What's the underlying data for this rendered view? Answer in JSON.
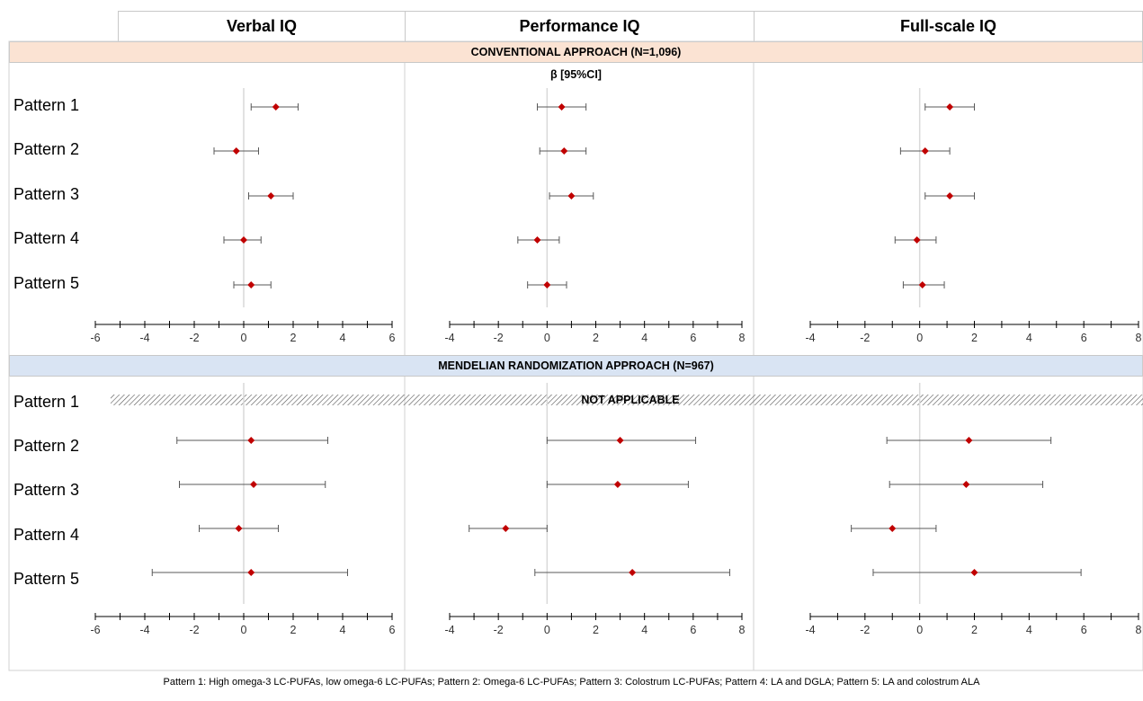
{
  "columns": [
    "Verbal IQ",
    "Performance IQ",
    "Full-scale IQ"
  ],
  "sections": {
    "conventional": {
      "title": "CONVENTIONAL APPROACH (N=1,096)",
      "subtitle": "β [95%CI]"
    },
    "mendelian": {
      "title": "MENDELIAN RANDOMIZATION APPROACH (N=967)",
      "not_applicable": "NOT APPLICABLE"
    }
  },
  "row_labels": [
    "Pattern 1",
    "Pattern 2",
    "Pattern 3",
    "Pattern 4",
    "Pattern 5"
  ],
  "caption": "Pattern 1: High omega-3 LC-PUFAs, low omega-6 LC-PUFAs; Pattern 2: Omega-6 LC-PUFAs; Pattern 3: Colostrum LC-PUFAs; Pattern 4: LA and DGLA; Pattern 5: LA and colostrum ALA",
  "colors": {
    "point": "#c00000",
    "whisker": "#595959",
    "zero_line": "#d9d9d9",
    "conventional_band": "#fbe3d3",
    "mendelian_band": "#d9e4f3"
  },
  "chart_data": [
    {
      "type": "forest",
      "section": "CONVENTIONAL APPROACH (N=1,096)",
      "panel": "Verbal IQ",
      "xlim": [
        -6,
        6
      ],
      "ticks": [
        -6,
        -4,
        -2,
        0,
        2,
        4,
        6
      ],
      "categories": [
        "Pattern 1",
        "Pattern 2",
        "Pattern 3",
        "Pattern 4",
        "Pattern 5"
      ],
      "estimates": [
        1.3,
        -0.3,
        1.1,
        0.0,
        0.3
      ],
      "lower": [
        0.3,
        -1.2,
        0.2,
        -0.8,
        -0.4
      ],
      "upper": [
        2.2,
        0.6,
        2.0,
        0.7,
        1.1
      ]
    },
    {
      "type": "forest",
      "section": "CONVENTIONAL APPROACH (N=1,096)",
      "panel": "Performance IQ",
      "xlim": [
        -4,
        8
      ],
      "ticks": [
        -4,
        -2,
        0,
        2,
        4,
        6,
        8
      ],
      "categories": [
        "Pattern 1",
        "Pattern 2",
        "Pattern 3",
        "Pattern 4",
        "Pattern 5"
      ],
      "estimates": [
        0.6,
        0.7,
        1.0,
        -0.4,
        0.0
      ],
      "lower": [
        -0.4,
        -0.3,
        0.1,
        -1.2,
        -0.8
      ],
      "upper": [
        1.6,
        1.6,
        1.9,
        0.5,
        0.8
      ]
    },
    {
      "type": "forest",
      "section": "CONVENTIONAL APPROACH (N=1,096)",
      "panel": "Full-scale IQ",
      "xlim": [
        -4,
        8
      ],
      "ticks": [
        -4,
        -2,
        0,
        2,
        4,
        6,
        8
      ],
      "categories": [
        "Pattern 1",
        "Pattern 2",
        "Pattern 3",
        "Pattern 4",
        "Pattern 5"
      ],
      "estimates": [
        1.1,
        0.2,
        1.1,
        -0.1,
        0.1
      ],
      "lower": [
        0.2,
        -0.7,
        0.2,
        -0.9,
        -0.6
      ],
      "upper": [
        2.0,
        1.1,
        2.0,
        0.6,
        0.9
      ]
    },
    {
      "type": "forest",
      "section": "MENDELIAN RANDOMIZATION APPROACH (N=967)",
      "panel": "Verbal IQ",
      "xlim": [
        -6,
        6
      ],
      "ticks": [
        -6,
        -4,
        -2,
        0,
        2,
        4,
        6
      ],
      "categories": [
        "Pattern 1",
        "Pattern 2",
        "Pattern 3",
        "Pattern 4",
        "Pattern 5"
      ],
      "estimates": [
        null,
        0.3,
        0.4,
        -0.2,
        0.3
      ],
      "lower": [
        null,
        -2.7,
        -2.6,
        -1.8,
        -3.7
      ],
      "upper": [
        null,
        3.4,
        3.3,
        1.4,
        4.2
      ]
    },
    {
      "type": "forest",
      "section": "MENDELIAN RANDOMIZATION APPROACH (N=967)",
      "panel": "Performance IQ",
      "xlim": [
        -4,
        8
      ],
      "ticks": [
        -4,
        -2,
        0,
        2,
        4,
        6,
        8
      ],
      "categories": [
        "Pattern 1",
        "Pattern 2",
        "Pattern 3",
        "Pattern 4",
        "Pattern 5"
      ],
      "estimates": [
        null,
        3.0,
        2.9,
        -1.7,
        3.5
      ],
      "lower": [
        null,
        0.0,
        0.0,
        -3.2,
        -0.5
      ],
      "upper": [
        null,
        6.1,
        5.8,
        0.0,
        7.5
      ]
    },
    {
      "type": "forest",
      "section": "MENDELIAN RANDOMIZATION APPROACH (N=967)",
      "panel": "Full-scale IQ",
      "xlim": [
        -4,
        8
      ],
      "ticks": [
        -4,
        -2,
        0,
        2,
        4,
        6,
        8
      ],
      "categories": [
        "Pattern 1",
        "Pattern 2",
        "Pattern 3",
        "Pattern 4",
        "Pattern 5"
      ],
      "estimates": [
        null,
        1.8,
        1.7,
        -1.0,
        2.0
      ],
      "lower": [
        null,
        -1.2,
        -1.1,
        -2.5,
        -1.7
      ],
      "upper": [
        null,
        4.8,
        4.5,
        0.6,
        5.9
      ]
    }
  ]
}
